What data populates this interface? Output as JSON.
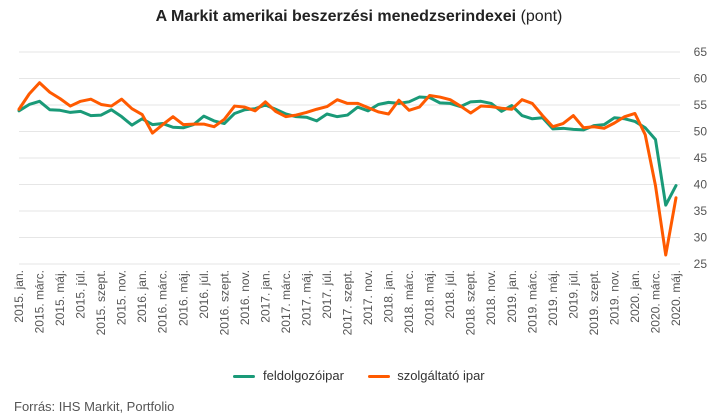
{
  "title": {
    "main": "A Markit amerikai beszerzési menedzserindexei",
    "unit": "(pont)"
  },
  "source": "Forrás: IHS Markit, Portfolio",
  "colors": {
    "feldolgozoipar": "#1a9a78",
    "szolgaltato": "#ff5a00",
    "grid": "#e6e6e6"
  },
  "chart_data": {
    "type": "line",
    "ylim": [
      25,
      65
    ],
    "yticks": [
      25,
      30,
      35,
      40,
      45,
      50,
      55,
      60,
      65
    ],
    "y_axis_position": "right",
    "grid": true,
    "legend_position": "bottom",
    "x_tick_labels": [
      "2015. jan.",
      "2015. márc.",
      "2015. máj.",
      "2015. júl.",
      "2015. szept.",
      "2015. nov.",
      "2016. jan.",
      "2016. márc.",
      "2016. máj.",
      "2016. júl.",
      "2016. szept.",
      "2016. nov.",
      "2017. jan.",
      "2017. márc.",
      "2017. máj.",
      "2017. júl.",
      "2017. szept.",
      "2017. nov.",
      "2018. jan.",
      "2018. márc.",
      "2018. máj.",
      "2018. júl.",
      "2018. szept.",
      "2018. nov.",
      "2019. jan.",
      "2019. márc.",
      "2019. máj.",
      "2019. júl.",
      "2019. szept.",
      "2019. nov.",
      "2020. jan.",
      "2020. márc.",
      "2020. máj."
    ],
    "x": [
      "2015-01",
      "2015-02",
      "2015-03",
      "2015-04",
      "2015-05",
      "2015-06",
      "2015-07",
      "2015-08",
      "2015-09",
      "2015-10",
      "2015-11",
      "2015-12",
      "2016-01",
      "2016-02",
      "2016-03",
      "2016-04",
      "2016-05",
      "2016-06",
      "2016-07",
      "2016-08",
      "2016-09",
      "2016-10",
      "2016-11",
      "2016-12",
      "2017-01",
      "2017-02",
      "2017-03",
      "2017-04",
      "2017-05",
      "2017-06",
      "2017-07",
      "2017-08",
      "2017-09",
      "2017-10",
      "2017-11",
      "2017-12",
      "2018-01",
      "2018-02",
      "2018-03",
      "2018-04",
      "2018-05",
      "2018-06",
      "2018-07",
      "2018-08",
      "2018-09",
      "2018-10",
      "2018-11",
      "2018-12",
      "2019-01",
      "2019-02",
      "2019-03",
      "2019-04",
      "2019-05",
      "2019-06",
      "2019-07",
      "2019-08",
      "2019-09",
      "2019-10",
      "2019-11",
      "2019-12",
      "2020-01",
      "2020-02",
      "2020-03",
      "2020-04",
      "2020-05"
    ],
    "series": [
      {
        "name": "feldolgozóipar",
        "values": [
          53.9,
          55.1,
          55.7,
          54.1,
          54.0,
          53.6,
          53.8,
          53.0,
          53.1,
          54.1,
          52.8,
          51.2,
          52.4,
          51.3,
          51.5,
          50.8,
          50.7,
          51.3,
          52.9,
          52.0,
          51.5,
          53.4,
          54.1,
          54.3,
          55.0,
          54.2,
          53.3,
          52.8,
          52.7,
          52.0,
          53.3,
          52.8,
          53.1,
          54.6,
          53.9,
          55.1,
          55.5,
          55.3,
          55.6,
          56.5,
          56.4,
          55.4,
          55.3,
          54.7,
          55.6,
          55.7,
          55.3,
          53.8,
          54.9,
          53.0,
          52.4,
          52.6,
          50.5,
          50.6,
          50.4,
          50.3,
          51.1,
          51.3,
          52.6,
          52.4,
          51.9,
          50.7,
          48.5,
          36.1,
          39.8
        ]
      },
      {
        "name": "szolgáltató ipar",
        "values": [
          54.2,
          57.1,
          59.2,
          57.4,
          56.2,
          54.8,
          55.7,
          56.1,
          55.1,
          54.8,
          56.1,
          54.3,
          53.2,
          49.7,
          51.3,
          52.8,
          51.3,
          51.4,
          51.4,
          50.9,
          52.3,
          54.8,
          54.6,
          53.9,
          55.6,
          53.8,
          52.8,
          53.1,
          53.6,
          54.2,
          54.7,
          56.0,
          55.3,
          55.3,
          54.5,
          53.7,
          53.3,
          55.9,
          54.0,
          54.6,
          56.8,
          56.5,
          56.0,
          54.8,
          53.5,
          54.8,
          54.7,
          54.4,
          54.2,
          56.0,
          55.3,
          53.0,
          50.9,
          51.5,
          53.0,
          50.7,
          50.9,
          50.6,
          51.6,
          52.8,
          53.4,
          49.4,
          39.8,
          26.7,
          37.5
        ]
      }
    ]
  }
}
